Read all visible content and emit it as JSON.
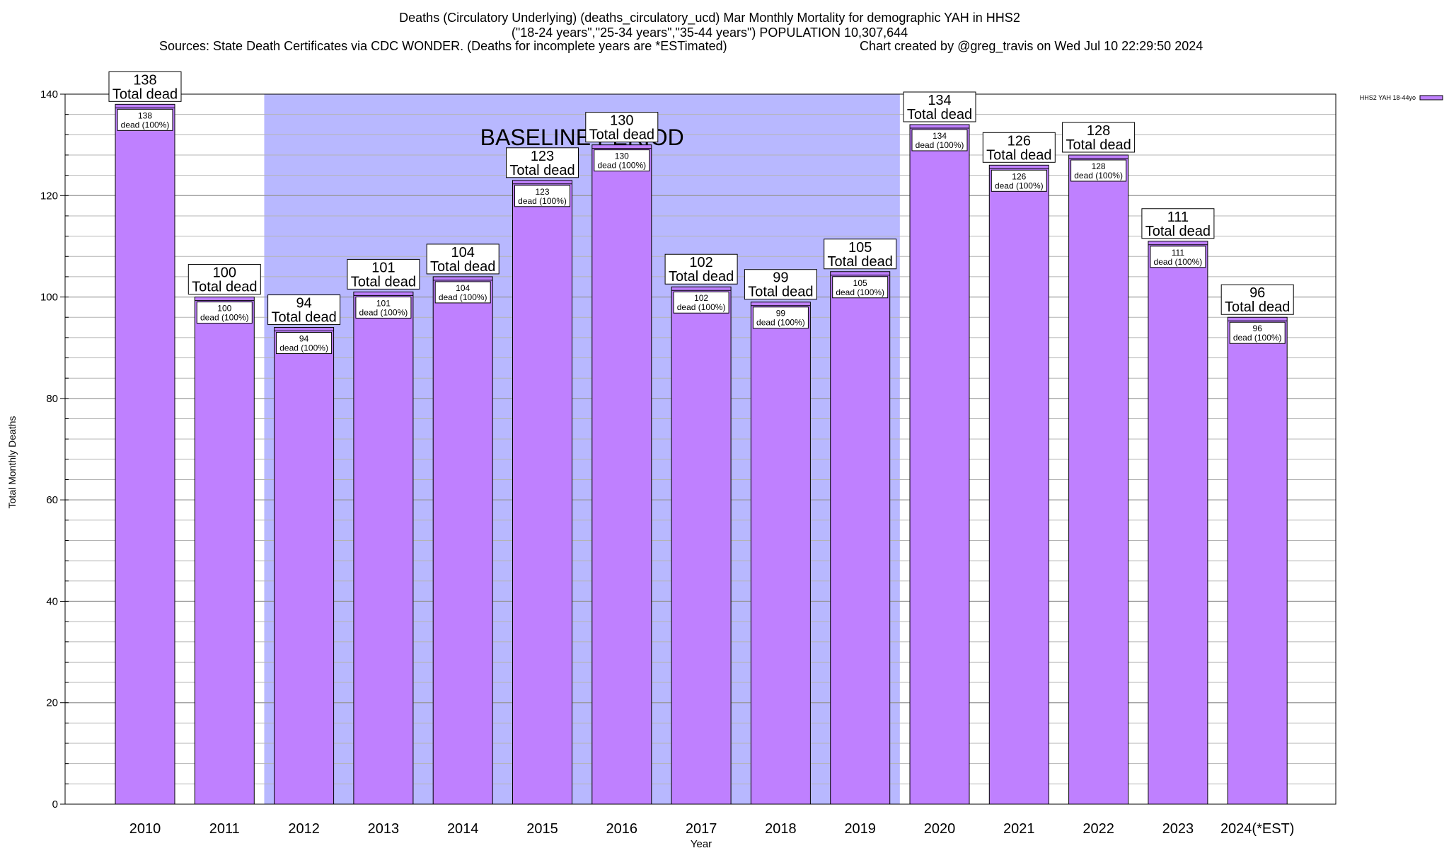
{
  "chart_data": {
    "type": "bar",
    "title_lines": [
      "Deaths (Circulatory Underlying) (deaths_circulatory_ucd) Mar Monthly Mortality for demographic YAH in HHS2",
      "(\"18-24 years\",\"25-34 years\",\"35-44 years\") POPULATION 10,307,644"
    ],
    "sources": "Sources: State Death Certificates via CDC WONDER. (Deaths for incomplete years are *ESTimated)",
    "credit": "Chart created by @greg_travis on Wed Jul 10 22:29:50 2024",
    "xlabel": "Year",
    "ylabel": "Total Monthly Deaths",
    "ylim": [
      0,
      140
    ],
    "y_major_ticks": [
      0,
      20,
      40,
      60,
      80,
      100,
      120,
      140
    ],
    "y_minor_step": 4,
    "grid": true,
    "legend_position": "top-right",
    "categories": [
      "2010",
      "2011",
      "2012",
      "2013",
      "2014",
      "2015",
      "2016",
      "2017",
      "2018",
      "2019",
      "2020",
      "2021",
      "2022",
      "2023",
      "2024(*EST)"
    ],
    "series": [
      {
        "name": "HHS2 YAH 18-44yo",
        "color": "#bf80ff",
        "values": [
          138,
          100,
          94,
          101,
          104,
          123,
          130,
          102,
          99,
          105,
          134,
          126,
          128,
          111,
          96
        ]
      }
    ],
    "top_label_suffix": "Total dead",
    "inner_label_suffix": "dead (100%)",
    "baseline": {
      "label": "BASELINE PERIOD",
      "start": "2012",
      "end": "2019",
      "color": "#b8b8ff"
    }
  }
}
